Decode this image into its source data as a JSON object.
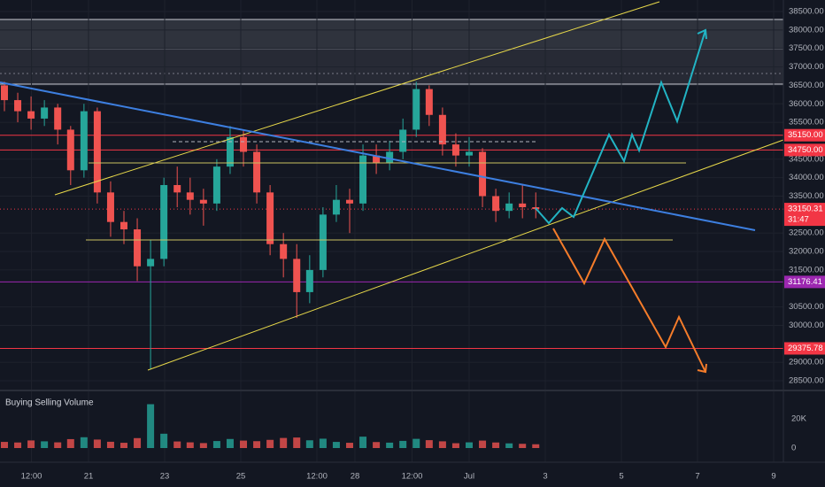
{
  "chart_data": {
    "type": "candlestick",
    "xlim": [
      18.674,
      39.256
    ],
    "ylim": [
      28260,
      38812
    ],
    "grid": true,
    "up_color": "#26a69a",
    "down_color": "#ef5350",
    "xticks": [
      {
        "value": 19.5,
        "label": "12:00"
      },
      21,
      23,
      25,
      {
        "value": 27,
        "label": "12:00"
      },
      28,
      {
        "value": 29.5,
        "label": "12:00"
      },
      {
        "value": 31,
        "label": "Jul"
      },
      {
        "value": 33,
        "label": "3"
      },
      {
        "value": 35,
        "label": "5"
      },
      {
        "value": 37,
        "label": "7"
      },
      {
        "value": 39,
        "label": "9"
      }
    ],
    "yticks": [
      {
        "value": 38500,
        "label": "38500.00"
      },
      {
        "value": 38000,
        "label": "38000.00"
      },
      {
        "value": 37500,
        "label": "37500.00"
      },
      {
        "value": 37000,
        "label": "37000.00"
      },
      {
        "value": 36500,
        "label": "36500.00"
      },
      {
        "value": 36000,
        "label": "36000.00"
      },
      {
        "value": 35500,
        "label": "35500.00"
      },
      {
        "value": 34500,
        "label": "34500.00"
      },
      {
        "value": 34000,
        "label": "34000.00"
      },
      {
        "value": 33500,
        "label": "33500.00"
      },
      {
        "value": 32500,
        "label": "32500.00"
      },
      {
        "value": 32000,
        "label": "32000.00"
      },
      {
        "value": 31500,
        "label": "31500.00"
      },
      {
        "value": 30500,
        "label": "30500.00"
      },
      {
        "value": 30000,
        "label": "30000.00"
      },
      {
        "value": 29000,
        "label": "29000.00"
      },
      {
        "value": 28500,
        "label": "28500.00"
      }
    ],
    "x": [
      18.79,
      19.14,
      19.49,
      19.84,
      20.19,
      20.53,
      20.88,
      21.23,
      21.58,
      21.93,
      22.28,
      22.63,
      22.98,
      23.33,
      23.67,
      24.02,
      24.37,
      24.72,
      25.07,
      25.42,
      25.77,
      26.12,
      26.47,
      26.81,
      27.16,
      27.51,
      27.86,
      28.21,
      28.56,
      28.91,
      29.26,
      29.61,
      29.95,
      30.3,
      30.65,
      31.0,
      31.35,
      31.7,
      32.05,
      32.4,
      32.75
    ],
    "open": [
      36500,
      36100,
      35800,
      35600,
      35900,
      35300,
      34200,
      35800,
      33600,
      32800,
      32600,
      31600,
      31800,
      33800,
      33600,
      33400,
      33300,
      34300,
      35100,
      34700,
      33600,
      32200,
      31800,
      30900,
      31500,
      33000,
      33400,
      33300,
      34600,
      34400,
      34700,
      35300,
      36400,
      35700,
      34900,
      34600,
      34700,
      33500,
      33100,
      33300,
      33200
    ],
    "high": [
      36600,
      36300,
      36200,
      36100,
      36000,
      35400,
      36000,
      35900,
      33900,
      33100,
      32900,
      32300,
      34000,
      34300,
      34000,
      33700,
      34500,
      35400,
      35300,
      34900,
      33800,
      32500,
      32200,
      31900,
      33200,
      33800,
      33700,
      34900,
      34900,
      35000,
      35600,
      36600,
      36500,
      35900,
      35200,
      35100,
      34800,
      33700,
      33600,
      33800,
      33600
    ],
    "low": [
      35800,
      35500,
      35300,
      35400,
      34900,
      33800,
      34000,
      33300,
      32400,
      32200,
      31200,
      28800,
      31600,
      33200,
      33000,
      32700,
      33100,
      34100,
      34300,
      33300,
      31900,
      31300,
      30200,
      30600,
      31300,
      32800,
      32500,
      33100,
      34100,
      34200,
      34500,
      35100,
      35400,
      34600,
      34300,
      34300,
      33200,
      32800,
      32900,
      32900,
      32900
    ],
    "close": [
      36100,
      35800,
      35600,
      35900,
      35300,
      34200,
      35800,
      33600,
      32800,
      32600,
      31600,
      31800,
      33800,
      33600,
      33400,
      33300,
      34300,
      35100,
      34700,
      33600,
      32200,
      31800,
      30900,
      31500,
      33000,
      33400,
      33300,
      34600,
      34400,
      34700,
      35300,
      36400,
      35700,
      34900,
      34600,
      34700,
      33500,
      33100,
      33300,
      33200,
      33150
    ],
    "price_levels": [
      {
        "value": 35150,
        "label": "35150.00",
        "color": "#f23645"
      },
      {
        "value": 34750,
        "label": "34750.00",
        "color": "#f23645"
      },
      {
        "value": 31176.41,
        "label": "31176.41",
        "color": "#9c27b0"
      },
      {
        "value": 29375.78,
        "label": "29375.78",
        "color": "#f23645"
      }
    ],
    "last_price": {
      "value": 33150.31,
      "label": "33150.31",
      "countdown": "31:47",
      "color": "#f23645"
    },
    "volume": {
      "title": "Buying Selling Volume",
      "ylim": [
        -5450,
        36970
      ],
      "yticks": [
        {
          "value": 20000,
          "label": "20K"
        },
        0
      ],
      "values": [
        4200,
        3800,
        5200,
        4600,
        3900,
        6100,
        7400,
        5800,
        4300,
        3600,
        6800,
        30000,
        9800,
        4500,
        3900,
        3400,
        4800,
        6200,
        5100,
        4700,
        5600,
        6900,
        7200,
        5300,
        6400,
        4200,
        3600,
        7800,
        4100,
        3700,
        4900,
        6300,
        5400,
        4600,
        3300,
        3900,
        5100,
        3800,
        3200,
        2900,
        2600
      ]
    }
  }
}
